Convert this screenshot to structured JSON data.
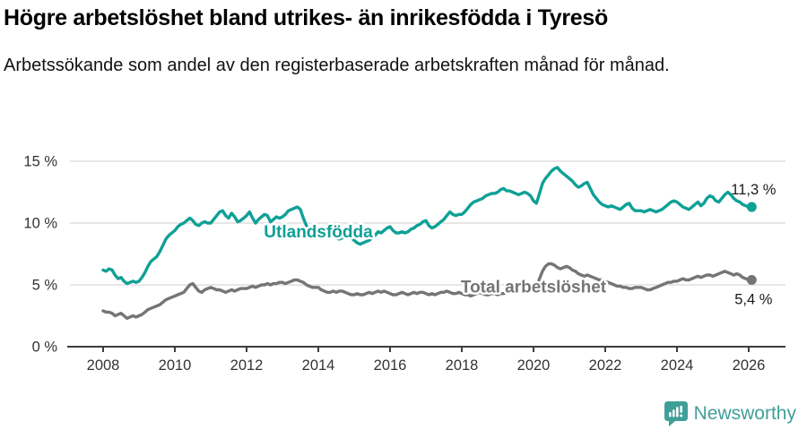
{
  "header": {
    "title": "Högre arbetslöshet bland utrikes- än inrikesfödda i Tyresö",
    "subtitle": "Arbetssökande som andel av den registerbaserade arbetskraften månad för månad."
  },
  "footer": {
    "brand": "Newsworthy"
  },
  "colors": {
    "accent_teal": "#0fa096",
    "line_gray": "#757575",
    "brand_teal": "#3f9f98",
    "axis_text": "#333333",
    "gridline": "#d8d8d8"
  },
  "chart_data": {
    "type": "line",
    "title": "Högre arbetslöshet bland utrikes- än inrikesfödda i Tyresö",
    "subtitle": "Arbetssökande som andel av den registerbaserade arbetskraften månad för månad.",
    "unit": "%",
    "grid": true,
    "legend_position": "inline",
    "x_start_year": 2008,
    "points_per_year": 12,
    "x_axis": {
      "ticks": [
        {
          "year": 2008,
          "label": "2008"
        },
        {
          "year": 2010,
          "label": "2010"
        },
        {
          "year": 2012,
          "label": "2012"
        },
        {
          "year": 2014,
          "label": "2014"
        },
        {
          "year": 2016,
          "label": "2016"
        },
        {
          "year": 2018,
          "label": "2018"
        },
        {
          "year": 2020,
          "label": "2020"
        },
        {
          "year": 2022,
          "label": "2022"
        },
        {
          "year": 2024,
          "label": "2024"
        },
        {
          "year": 2026,
          "label": "2026"
        }
      ]
    },
    "y_axis": {
      "range": [
        0,
        15.5
      ],
      "ticks": [
        {
          "value": 0,
          "label": "0 %"
        },
        {
          "value": 5,
          "label": "5 %"
        },
        {
          "value": 10,
          "label": "10 %"
        },
        {
          "value": 15,
          "label": "15 %"
        }
      ]
    },
    "series": [
      {
        "name": "Total arbetslöshet",
        "color": "#757575",
        "end_label": "5,4 %",
        "end_label_position": "below",
        "inline_label": {
          "text": "Total arbetslöshet",
          "year": 2020.0,
          "value": 4.85
        },
        "values": [
          2.9,
          2.8,
          2.8,
          2.7,
          2.5,
          2.6,
          2.7,
          2.5,
          2.3,
          2.4,
          2.5,
          2.4,
          2.5,
          2.6,
          2.8,
          3.0,
          3.1,
          3.2,
          3.3,
          3.4,
          3.6,
          3.8,
          3.9,
          4.0,
          4.1,
          4.2,
          4.3,
          4.4,
          4.7,
          5.0,
          5.1,
          4.8,
          4.5,
          4.4,
          4.6,
          4.7,
          4.8,
          4.7,
          4.6,
          4.6,
          4.5,
          4.4,
          4.5,
          4.6,
          4.5,
          4.6,
          4.7,
          4.7,
          4.7,
          4.8,
          4.9,
          4.8,
          4.9,
          5.0,
          5.0,
          5.1,
          5.0,
          5.1,
          5.1,
          5.2,
          5.2,
          5.1,
          5.2,
          5.3,
          5.4,
          5.4,
          5.3,
          5.2,
          5.0,
          4.9,
          4.8,
          4.8,
          4.8,
          4.6,
          4.5,
          4.4,
          4.4,
          4.5,
          4.4,
          4.5,
          4.5,
          4.4,
          4.3,
          4.2,
          4.2,
          4.3,
          4.2,
          4.2,
          4.3,
          4.4,
          4.3,
          4.4,
          4.5,
          4.4,
          4.5,
          4.4,
          4.3,
          4.2,
          4.2,
          4.3,
          4.4,
          4.3,
          4.2,
          4.3,
          4.4,
          4.3,
          4.4,
          4.4,
          4.3,
          4.2,
          4.3,
          4.2,
          4.3,
          4.4,
          4.4,
          4.5,
          4.4,
          4.3,
          4.3,
          4.4,
          4.3,
          4.2,
          4.2,
          4.1,
          4.2,
          4.3,
          4.4,
          4.3,
          4.2,
          4.2,
          4.3,
          4.3,
          4.2,
          4.3,
          4.3,
          4.4,
          4.4,
          4.5,
          4.4,
          4.4,
          4.5,
          4.4,
          4.4,
          4.6,
          4.7,
          4.9,
          5.5,
          6.1,
          6.5,
          6.7,
          6.7,
          6.6,
          6.4,
          6.3,
          6.4,
          6.5,
          6.4,
          6.2,
          6.1,
          5.9,
          5.8,
          5.7,
          5.8,
          5.7,
          5.6,
          5.5,
          5.4,
          5.4,
          5.3,
          5.2,
          5.1,
          5.0,
          4.9,
          4.9,
          4.8,
          4.8,
          4.7,
          4.7,
          4.8,
          4.8,
          4.8,
          4.7,
          4.6,
          4.6,
          4.7,
          4.8,
          4.9,
          5.0,
          5.1,
          5.2,
          5.2,
          5.3,
          5.3,
          5.4,
          5.5,
          5.4,
          5.4,
          5.5,
          5.6,
          5.7,
          5.6,
          5.7,
          5.8,
          5.8,
          5.7,
          5.8,
          5.9,
          6.0,
          6.1,
          6.0,
          5.9,
          5.8,
          5.9,
          5.8,
          5.6,
          5.5,
          5.4,
          5.4
        ]
      },
      {
        "name": "Utlandsfödda",
        "color": "#0fa096",
        "end_label": "11,3 %",
        "end_label_position": "above",
        "inline_label": {
          "text": "Utlandsfödda",
          "year": 2014.0,
          "value": 9.3
        },
        "values": [
          6.2,
          6.1,
          6.3,
          6.2,
          5.8,
          5.5,
          5.6,
          5.3,
          5.1,
          5.2,
          5.3,
          5.2,
          5.3,
          5.6,
          6.0,
          6.5,
          6.9,
          7.1,
          7.3,
          7.7,
          8.2,
          8.7,
          9.0,
          9.2,
          9.4,
          9.7,
          9.9,
          10.0,
          10.2,
          10.4,
          10.2,
          9.9,
          9.8,
          10.0,
          10.1,
          10.0,
          10.0,
          10.3,
          10.6,
          10.9,
          11.0,
          10.6,
          10.4,
          10.8,
          10.5,
          10.1,
          10.2,
          10.4,
          10.6,
          10.9,
          10.4,
          10.0,
          10.3,
          10.5,
          10.7,
          10.6,
          10.1,
          10.3,
          10.5,
          10.4,
          10.5,
          10.7,
          11.0,
          11.1,
          11.2,
          11.3,
          11.1,
          10.4,
          9.8,
          9.3,
          9.0,
          8.9,
          9.0,
          9.2,
          9.3,
          9.2,
          9.0,
          8.9,
          8.8,
          8.7,
          8.8,
          8.9,
          8.8,
          8.8,
          8.6,
          8.4,
          8.3,
          8.4,
          8.5,
          8.6,
          8.8,
          9.0,
          9.3,
          9.2,
          9.4,
          9.6,
          9.7,
          9.4,
          9.2,
          9.2,
          9.3,
          9.2,
          9.3,
          9.5,
          9.6,
          9.8,
          9.9,
          10.1,
          10.2,
          9.8,
          9.6,
          9.7,
          9.9,
          10.1,
          10.3,
          10.6,
          10.9,
          10.7,
          10.6,
          10.7,
          10.7,
          10.9,
          11.2,
          11.5,
          11.7,
          11.8,
          11.9,
          12.0,
          12.2,
          12.3,
          12.4,
          12.4,
          12.5,
          12.7,
          12.8,
          12.6,
          12.6,
          12.5,
          12.4,
          12.3,
          12.4,
          12.5,
          12.4,
          12.2,
          11.8,
          11.6,
          12.4,
          13.2,
          13.6,
          13.9,
          14.2,
          14.4,
          14.5,
          14.2,
          14.0,
          13.8,
          13.6,
          13.4,
          13.1,
          12.9,
          13.0,
          13.2,
          13.3,
          12.8,
          12.3,
          12.0,
          11.7,
          11.5,
          11.4,
          11.3,
          11.4,
          11.3,
          11.2,
          11.1,
          11.3,
          11.5,
          11.6,
          11.2,
          11.0,
          11.0,
          11.0,
          10.9,
          11.0,
          11.1,
          11.0,
          10.9,
          11.0,
          11.1,
          11.3,
          11.5,
          11.7,
          11.8,
          11.7,
          11.5,
          11.3,
          11.2,
          11.1,
          11.3,
          11.5,
          11.7,
          11.4,
          11.6,
          12.0,
          12.2,
          12.1,
          11.8,
          11.7,
          12.0,
          12.3,
          12.5,
          12.3,
          12.0,
          11.8,
          11.7,
          11.5,
          11.4,
          11.3,
          11.3
        ]
      }
    ]
  }
}
